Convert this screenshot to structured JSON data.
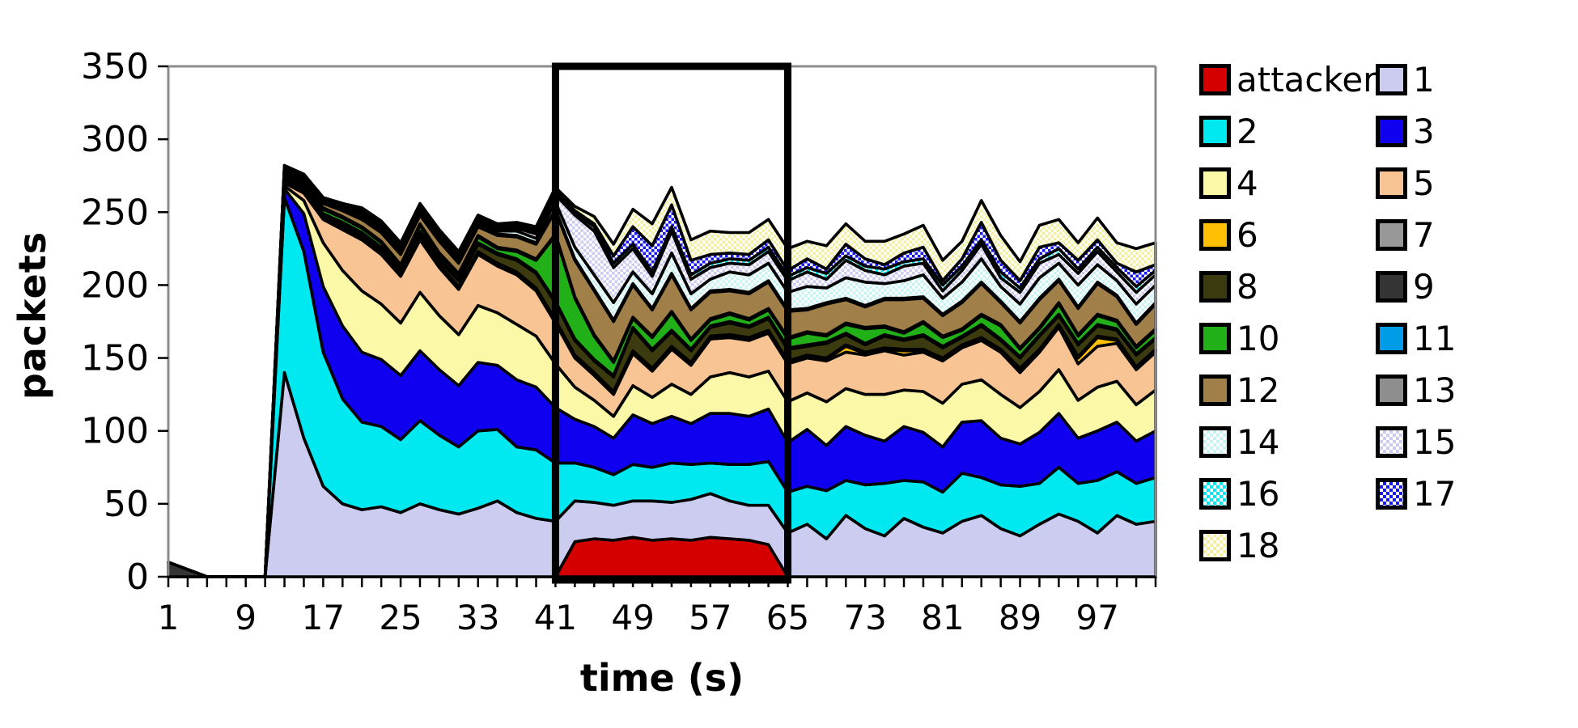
{
  "chart_data": {
    "type": "area",
    "stacked": true,
    "title": "",
    "xlabel": "time (s)",
    "ylabel": "packets",
    "ylim": [
      0,
      350
    ],
    "y_ticks": [
      0,
      50,
      100,
      150,
      200,
      250,
      300,
      350
    ],
    "x_tick_labels": [
      1,
      9,
      17,
      25,
      33,
      41,
      49,
      57,
      65,
      73,
      81,
      89,
      97
    ],
    "x_minor_tick_step": 2,
    "grid": false,
    "legend_position": "right",
    "highlight_box": {
      "t_start": 41,
      "t_end": 65,
      "y_bottom": 0,
      "y_top": 350
    },
    "x": [
      1,
      3,
      5,
      7,
      9,
      11,
      13,
      15,
      17,
      19,
      21,
      23,
      25,
      27,
      29,
      31,
      33,
      35,
      37,
      39,
      41,
      43,
      45,
      47,
      49,
      51,
      53,
      55,
      57,
      59,
      61,
      63,
      65,
      67,
      69,
      71,
      73,
      75,
      77,
      79,
      81,
      83,
      85,
      87,
      89,
      91,
      93,
      95,
      97,
      99,
      101,
      103
    ],
    "series": [
      {
        "name": "attacker",
        "color": "#d40000",
        "pattern": false,
        "values": [
          0,
          0,
          0,
          0,
          0,
          0,
          0,
          0,
          0,
          0,
          0,
          0,
          0,
          0,
          0,
          0,
          0,
          0,
          0,
          0,
          0,
          24,
          26,
          25,
          27,
          25,
          26,
          25,
          27,
          26,
          25,
          22,
          0,
          0,
          0,
          0,
          0,
          0,
          0,
          0,
          0,
          0,
          0,
          0,
          0,
          0,
          0,
          0,
          0,
          0,
          0,
          0
        ]
      },
      {
        "name": "1",
        "color": "#ccccf0",
        "pattern": false,
        "values": [
          0,
          0,
          0,
          0,
          0,
          0,
          140,
          95,
          62,
          50,
          46,
          48,
          44,
          50,
          46,
          43,
          47,
          52,
          44,
          40,
          38,
          28,
          25,
          24,
          25,
          27,
          25,
          28,
          30,
          26,
          24,
          27,
          30,
          36,
          26,
          42,
          33,
          28,
          40,
          34,
          30,
          38,
          42,
          33,
          28,
          36,
          43,
          38,
          30,
          42,
          36,
          38
        ]
      },
      {
        "name": "2",
        "color": "#00e8f0",
        "pattern": false,
        "values": [
          0,
          0,
          0,
          0,
          0,
          0,
          120,
          128,
          92,
          72,
          60,
          55,
          50,
          57,
          51,
          46,
          53,
          49,
          45,
          47,
          40,
          26,
          24,
          21,
          25,
          23,
          27,
          24,
          21,
          25,
          28,
          30,
          28,
          26,
          33,
          24,
          30,
          36,
          26,
          31,
          28,
          33,
          26,
          30,
          34,
          28,
          32,
          26,
          36,
          30,
          28,
          30
        ]
      },
      {
        "name": "3",
        "color": "#0f00ef",
        "pattern": false,
        "values": [
          0,
          0,
          0,
          0,
          0,
          0,
          6,
          26,
          45,
          50,
          48,
          46,
          44,
          48,
          45,
          42,
          47,
          44,
          46,
          43,
          38,
          30,
          28,
          25,
          34,
          30,
          32,
          28,
          34,
          35,
          33,
          36,
          34,
          39,
          31,
          37,
          34,
          29,
          37,
          34,
          31,
          35,
          39,
          32,
          29,
          35,
          37,
          31,
          34,
          34,
          29,
          32
        ]
      },
      {
        "name": "4",
        "color": "#fbf8a8",
        "pattern": false,
        "values": [
          0,
          0,
          0,
          0,
          0,
          0,
          2,
          9,
          30,
          38,
          42,
          38,
          36,
          40,
          37,
          35,
          39,
          36,
          38,
          35,
          30,
          22,
          18,
          15,
          20,
          18,
          22,
          20,
          25,
          28,
          27,
          26,
          28,
          25,
          30,
          26,
          28,
          32,
          25,
          28,
          30,
          26,
          28,
          30,
          25,
          28,
          30,
          26,
          30,
          28,
          25,
          28
        ]
      },
      {
        "name": "5",
        "color": "#f8c493",
        "pattern": false,
        "values": [
          0,
          0,
          0,
          0,
          0,
          0,
          2,
          5,
          16,
          28,
          35,
          34,
          32,
          36,
          33,
          31,
          35,
          32,
          34,
          31,
          28,
          20,
          17,
          15,
          22,
          18,
          24,
          20,
          26,
          24,
          25,
          26,
          26,
          24,
          28,
          25,
          27,
          30,
          24,
          27,
          29,
          25,
          27,
          29,
          24,
          27,
          29,
          25,
          28,
          26,
          24,
          26
        ]
      },
      {
        "name": "6",
        "color": "#ffc003",
        "pattern": false,
        "values": [
          0,
          0,
          0,
          0,
          0,
          0,
          1,
          1,
          1,
          1,
          1,
          1,
          1,
          1,
          1,
          1,
          1,
          1,
          1,
          1,
          1,
          1,
          1,
          1,
          1,
          1,
          1,
          1,
          1,
          1,
          1,
          1,
          1,
          1,
          1,
          4,
          1,
          1,
          3,
          1,
          1,
          1,
          1,
          1,
          2,
          1,
          1,
          4,
          6,
          2,
          1,
          1
        ]
      },
      {
        "name": "7",
        "color": "#989898",
        "pattern": false,
        "values": [
          0,
          0,
          0,
          0,
          0,
          0,
          1,
          1,
          1,
          1,
          1,
          1,
          1,
          1,
          1,
          1,
          1,
          1,
          1,
          1,
          1,
          1,
          1,
          1,
          1,
          1,
          1,
          1,
          1,
          1,
          1,
          1,
          1,
          1,
          1,
          1,
          1,
          1,
          1,
          1,
          1,
          1,
          1,
          1,
          1,
          1,
          1,
          1,
          1,
          1,
          1,
          1
        ]
      },
      {
        "name": "8",
        "color": "#3c3a0f",
        "pattern": false,
        "values": [
          0,
          0,
          0,
          0,
          0,
          0,
          1,
          1,
          1,
          2,
          2,
          2,
          2,
          3,
          3,
          4,
          5,
          6,
          8,
          10,
          12,
          10,
          8,
          10,
          15,
          12,
          10,
          8,
          6,
          8,
          7,
          8,
          8,
          6,
          10,
          7,
          5,
          8,
          6,
          9,
          7,
          5,
          8,
          6,
          7,
          9,
          6,
          8,
          7,
          6,
          8,
          7
        ]
      },
      {
        "name": "9",
        "color": "#343434",
        "pattern": false,
        "values": [
          10,
          5,
          0,
          0,
          0,
          0,
          1,
          1,
          1,
          1,
          1,
          1,
          1,
          1,
          1,
          1,
          1,
          1,
          1,
          1,
          1,
          1,
          1,
          1,
          1,
          1,
          1,
          1,
          1,
          1,
          1,
          1,
          1,
          1,
          1,
          1,
          1,
          1,
          1,
          1,
          1,
          1,
          1,
          1,
          1,
          1,
          1,
          1,
          1,
          1,
          1,
          1
        ]
      },
      {
        "name": "10",
        "color": "#22b018",
        "pattern": false,
        "values": [
          0,
          0,
          0,
          0,
          0,
          0,
          2,
          2,
          3,
          3,
          3,
          3,
          2,
          4,
          3,
          3,
          4,
          3,
          5,
          8,
          45,
          28,
          16,
          9,
          6,
          8,
          12,
          6,
          4,
          5,
          4,
          5,
          6,
          8,
          4,
          6,
          10,
          5,
          4,
          8,
          6,
          4,
          6,
          9,
          5,
          4,
          7,
          5,
          6,
          5,
          4,
          5
        ]
      },
      {
        "name": "11",
        "color": "#009ce8",
        "pattern": false,
        "values": [
          0,
          0,
          0,
          0,
          0,
          0,
          1,
          1,
          1,
          1,
          1,
          1,
          1,
          1,
          1,
          1,
          1,
          1,
          1,
          1,
          1,
          1,
          1,
          1,
          1,
          1,
          1,
          1,
          1,
          1,
          1,
          1,
          1,
          1,
          1,
          1,
          1,
          1,
          1,
          1,
          1,
          1,
          1,
          1,
          1,
          1,
          1,
          1,
          1,
          1,
          1,
          1
        ]
      },
      {
        "name": "12",
        "color": "#a17f48",
        "pattern": false,
        "values": [
          0,
          0,
          0,
          0,
          0,
          0,
          1,
          2,
          3,
          4,
          5,
          6,
          7,
          6,
          8,
          7,
          6,
          8,
          9,
          10,
          16,
          25,
          30,
          27,
          22,
          18,
          25,
          20,
          18,
          15,
          17,
          18,
          18,
          15,
          21,
          16,
          14,
          18,
          22,
          16,
          14,
          18,
          21,
          15,
          17,
          19,
          15,
          18,
          21,
          16,
          15,
          17
        ]
      },
      {
        "name": "13",
        "color": "#8e8e8e",
        "pattern": false,
        "values": [
          0,
          0,
          0,
          0,
          0,
          0,
          1,
          1,
          1,
          1,
          1,
          1,
          1,
          1,
          1,
          1,
          1,
          1,
          1,
          1,
          1,
          1,
          1,
          1,
          1,
          1,
          1,
          1,
          1,
          1,
          1,
          1,
          1,
          1,
          1,
          1,
          1,
          1,
          1,
          1,
          1,
          1,
          1,
          1,
          1,
          1,
          1,
          1,
          1,
          1,
          1,
          1
        ]
      },
      {
        "name": "14",
        "color": "#c8f3f3",
        "pattern": true,
        "values": [
          0,
          0,
          0,
          0,
          0,
          0,
          1,
          1,
          1,
          2,
          2,
          2,
          2,
          2,
          2,
          2,
          2,
          2,
          3,
          3,
          5,
          8,
          10,
          12,
          8,
          10,
          14,
          10,
          8,
          12,
          12,
          12,
          12,
          15,
          10,
          14,
          16,
          10,
          12,
          15,
          11,
          13,
          16,
          10,
          12,
          14,
          11,
          15,
          12,
          10,
          13,
          12
        ]
      },
      {
        "name": "15",
        "color": "#ccccf0",
        "pattern": true,
        "values": [
          0,
          0,
          0,
          0,
          0,
          0,
          1,
          1,
          1,
          1,
          2,
          2,
          2,
          2,
          2,
          2,
          2,
          2,
          2,
          3,
          5,
          22,
          30,
          24,
          16,
          12,
          15,
          10,
          8,
          6,
          7,
          8,
          8,
          10,
          6,
          12,
          8,
          6,
          10,
          8,
          5,
          8,
          10,
          6,
          8,
          10,
          6,
          8,
          9,
          6,
          8,
          7
        ]
      },
      {
        "name": "16",
        "color": "#00e8f0",
        "pattern": true,
        "values": [
          0,
          0,
          0,
          0,
          0,
          0,
          1,
          1,
          1,
          1,
          1,
          1,
          1,
          1,
          1,
          1,
          1,
          1,
          2,
          2,
          2,
          2,
          3,
          3,
          3,
          3,
          3,
          3,
          3,
          3,
          3,
          3,
          3,
          3,
          4,
          3,
          3,
          4,
          3,
          3,
          4,
          3,
          3,
          4,
          3,
          3,
          4,
          3,
          3,
          3,
          4,
          3
        ]
      },
      {
        "name": "17",
        "color": "#1a1af0",
        "pattern": true,
        "values": [
          0,
          0,
          0,
          0,
          0,
          0,
          0,
          0,
          0,
          0,
          1,
          1,
          1,
          1,
          1,
          1,
          1,
          1,
          1,
          1,
          1,
          1,
          2,
          5,
          12,
          18,
          15,
          10,
          6,
          4,
          4,
          5,
          4,
          6,
          3,
          8,
          5,
          3,
          6,
          8,
          3,
          5,
          12,
          8,
          5,
          8,
          4,
          6,
          5,
          3,
          10,
          4
        ]
      },
      {
        "name": "18",
        "color": "#f3efa0",
        "pattern": true,
        "values": [
          0,
          0,
          0,
          0,
          0,
          0,
          0,
          0,
          0,
          0,
          1,
          1,
          1,
          1,
          1,
          1,
          1,
          1,
          1,
          2,
          2,
          3,
          5,
          8,
          12,
          15,
          12,
          14,
          16,
          14,
          15,
          14,
          15,
          12,
          16,
          14,
          12,
          16,
          13,
          15,
          14,
          12,
          15,
          17,
          13,
          15,
          16,
          12,
          15,
          14,
          16,
          15
        ]
      }
    ]
  },
  "legend": {
    "items": [
      {
        "label": "attacker"
      },
      {
        "label": "1"
      },
      {
        "label": "2"
      },
      {
        "label": "3"
      },
      {
        "label": "4"
      },
      {
        "label": "5"
      },
      {
        "label": "6"
      },
      {
        "label": "7"
      },
      {
        "label": "8"
      },
      {
        "label": "9"
      },
      {
        "label": "10"
      },
      {
        "label": "11"
      },
      {
        "label": "12"
      },
      {
        "label": "13"
      },
      {
        "label": "14"
      },
      {
        "label": "15"
      },
      {
        "label": "16"
      },
      {
        "label": "17"
      },
      {
        "label": "18"
      }
    ]
  },
  "colors": {
    "frame": "#8c8c8c",
    "axis": "#000000",
    "highlight_box": "#000000",
    "band_outline": "#000000"
  }
}
